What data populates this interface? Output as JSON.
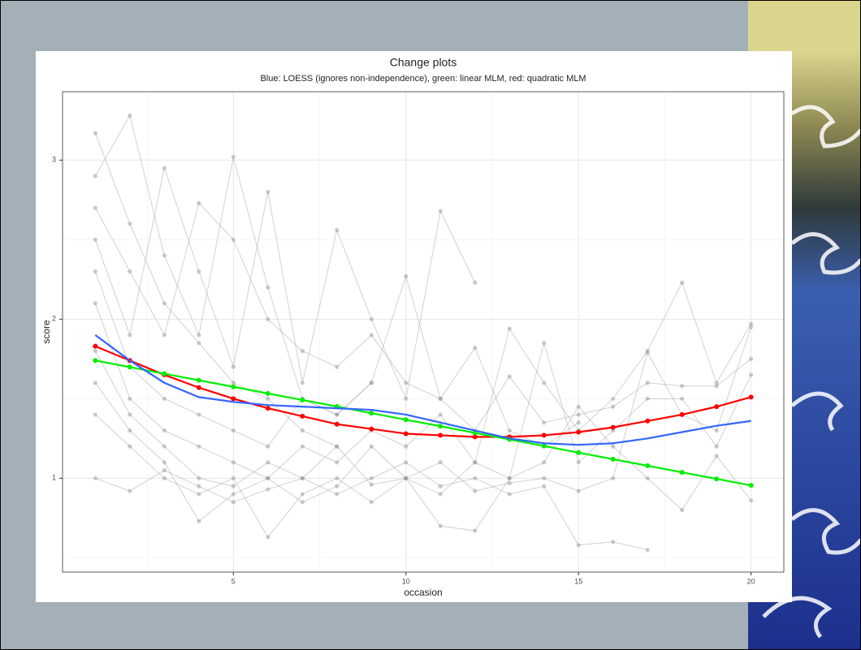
{
  "chart_data": {
    "type": "line",
    "title": "Change plots",
    "subtitle": "Blue: LOESS (ignores non-independence), green: linear MLM, red: quadratic MLM",
    "x_label": "occasion",
    "y_label": "score",
    "x": [
      1,
      2,
      3,
      4,
      5,
      6,
      7,
      8,
      9,
      10,
      11,
      12,
      13,
      14,
      15,
      16,
      17,
      18,
      19,
      20
    ],
    "xlim": [
      0.05,
      20.95
    ],
    "ylim": [
      0.41,
      3.43
    ],
    "xticks": [
      5,
      10,
      15,
      20
    ],
    "yticks": [
      1,
      2,
      3
    ],
    "x_minor_ticks": [
      2.5,
      7.5,
      12.5,
      17.5
    ],
    "y_minor_ticks": [
      0.5,
      1.5,
      2.5
    ],
    "grid": true,
    "series": [
      {
        "color": "#9a9a9a",
        "markers": true,
        "values": [
          3.17,
          2.6,
          2.1,
          1.85,
          1.6,
          1.5,
          1.3,
          1.2,
          null,
          null,
          null,
          null,
          null,
          null,
          null,
          null,
          null,
          null,
          null,
          null
        ]
      },
      {
        "color": "#9a9a9a",
        "markers": true,
        "values": [
          2.9,
          3.28,
          2.4,
          1.9,
          3.02,
          2.2,
          1.5,
          1.4,
          1.6,
          null,
          null,
          null,
          null,
          null,
          null,
          null,
          null,
          null,
          null,
          null
        ]
      },
      {
        "color": "#9a9a9a",
        "markers": true,
        "values": [
          2.5,
          1.9,
          2.95,
          2.3,
          1.7,
          2.8,
          1.6,
          2.56,
          2.0,
          1.5,
          2.68,
          2.23,
          null,
          null,
          null,
          null,
          null,
          null,
          null,
          null
        ]
      },
      {
        "color": "#9a9a9a",
        "markers": true,
        "values": [
          2.1,
          1.5,
          1.3,
          1.2,
          1.1,
          1.0,
          1.2,
          1.1,
          1.3,
          1.2,
          1.4,
          1.1,
          1.94,
          1.6,
          1.3,
          1.5,
          1.8,
          2.23,
          1.6,
          1.97
        ]
      },
      {
        "color": "#9a9a9a",
        "markers": true,
        "values": [
          1.8,
          1.4,
          1.2,
          1.0,
          0.95,
          1.1,
          1.0,
          0.9,
          1.0,
          1.1,
          0.95,
          1.0,
          0.9,
          0.95,
          0.58,
          0.6,
          0.55,
          null,
          null,
          null
        ]
      },
      {
        "color": "#9a9a9a",
        "markers": true,
        "values": [
          1.6,
          1.3,
          1.1,
          0.73,
          0.9,
          1.0,
          0.85,
          0.95,
          1.2,
          1.0,
          0.7,
          0.67,
          1.0,
          1.1,
          1.45,
          1.2,
          1.0,
          0.8,
          1.14,
          0.86
        ]
      },
      {
        "color": "#9a9a9a",
        "markers": true,
        "values": [
          2.3,
          1.7,
          1.5,
          1.4,
          1.3,
          1.2,
          1.5,
          1.4,
          1.6,
          2.27,
          1.5,
          1.3,
          1.64,
          1.35,
          1.4,
          1.45,
          1.6,
          1.58,
          1.58,
          1.75
        ]
      },
      {
        "color": "#9a9a9a",
        "markers": true,
        "values": [
          1.4,
          1.2,
          1.0,
          0.9,
          1.0,
          0.63,
          0.9,
          1.0,
          0.85,
          1.0,
          0.9,
          1.1,
          1.0,
          1.85,
          1.1,
          1.3,
          1.5,
          1.5,
          1.2,
          1.65
        ]
      },
      {
        "color": "#9a9a9a",
        "markers": true,
        "values": [
          2.7,
          2.3,
          1.9,
          2.73,
          2.5,
          2.0,
          1.8,
          1.7,
          1.9,
          1.6,
          1.5,
          1.82,
          1.3,
          1.2,
          1.35,
          null,
          null,
          null,
          null,
          null
        ]
      },
      {
        "color": "#9a9a9a",
        "markers": true,
        "values": [
          1.0,
          0.92,
          1.05,
          0.95,
          0.85,
          0.93,
          1.0,
          1.2,
          0.96,
          1.0,
          1.1,
          0.92,
          0.97,
          1.0,
          0.92,
          1.0,
          1.79,
          1.4,
          1.3,
          1.95
        ]
      },
      {
        "color": "#ff0000",
        "markers": true,
        "values": [
          1.83,
          1.74,
          1.65,
          1.57,
          1.5,
          1.44,
          1.39,
          1.34,
          1.31,
          1.28,
          1.27,
          1.26,
          1.26,
          1.27,
          1.29,
          1.32,
          1.36,
          1.4,
          1.45,
          1.51
        ]
      },
      {
        "color": "#00ee00",
        "markers": true,
        "values": [
          1.74,
          1.699,
          1.657,
          1.616,
          1.575,
          1.533,
          1.492,
          1.451,
          1.409,
          1.368,
          1.327,
          1.285,
          1.244,
          1.203,
          1.161,
          1.12,
          1.079,
          1.037,
          0.996,
          0.955
        ]
      },
      {
        "color": "#3366ff",
        "markers": false,
        "values": [
          1.9,
          1.74,
          1.6,
          1.51,
          1.48,
          1.46,
          1.45,
          1.44,
          1.43,
          1.4,
          1.35,
          1.3,
          1.25,
          1.22,
          1.21,
          1.22,
          1.25,
          1.29,
          1.33,
          1.36
        ]
      }
    ]
  }
}
